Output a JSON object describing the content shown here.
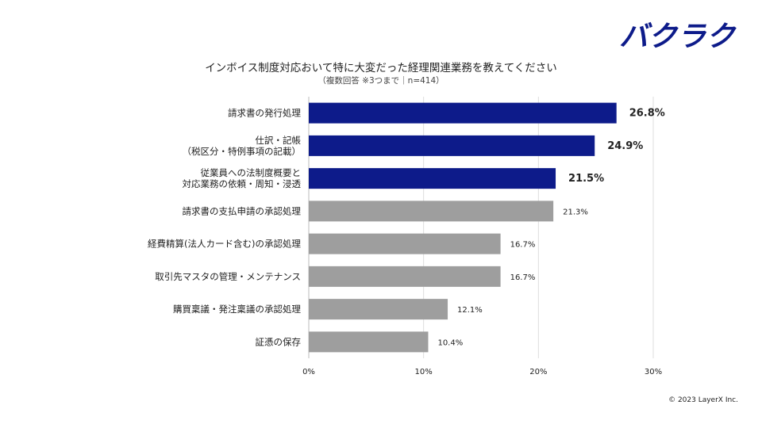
{
  "brand": {
    "name": "バクラク",
    "color": "#0d1b8a"
  },
  "copyright": "© 2023 LayerX Inc.",
  "chart_data": {
    "type": "bar",
    "orientation": "horizontal",
    "title": "インボイス制度対応おいて特に大変だった経理関連業務を教えてください",
    "subtitle": "（複数回答 ※3つまで｜n=414）",
    "unit": "%",
    "categories": [
      [
        "請求書の発行処理"
      ],
      [
        "仕訳・記帳",
        "（税区分・特例事項の記載）"
      ],
      [
        "従業員への法制度概要と",
        "対応業務の依頼・周知・浸透"
      ],
      [
        "請求書の支払申請の承認処理"
      ],
      [
        "経費精算(法人カード含む)の承認処理"
      ],
      [
        "取引先マスタの管理・メンテナンス"
      ],
      [
        "購買稟議・発注稟議の承認処理"
      ],
      [
        "証憑の保存"
      ]
    ],
    "values": [
      26.8,
      24.9,
      21.5,
      21.3,
      16.7,
      16.7,
      12.1,
      10.4
    ],
    "value_labels": [
      "26.8%",
      "24.9%",
      "21.5%",
      "21.3%",
      "16.7%",
      "16.7%",
      "12.1%",
      "10.4%"
    ],
    "highlight_count": 3,
    "colors": {
      "highlight": "#0d1b8a",
      "normal": "#9e9e9e",
      "grid": "#dddddd"
    },
    "xlim": [
      0,
      30
    ],
    "xticks": [
      0,
      10,
      20,
      30
    ],
    "xtick_labels": [
      "0%",
      "10%",
      "20%",
      "30%"
    ],
    "grid": true,
    "legend": "none"
  }
}
